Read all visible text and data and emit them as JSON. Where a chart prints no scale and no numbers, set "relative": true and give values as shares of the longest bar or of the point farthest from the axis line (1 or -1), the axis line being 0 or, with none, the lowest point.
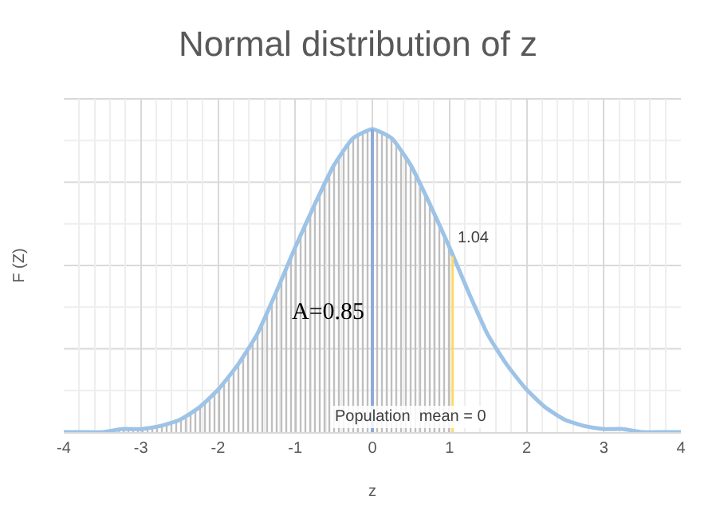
{
  "chart_data": {
    "type": "line",
    "title": "Normal distribution of z",
    "xlabel": "z",
    "ylabel": "F (Z)",
    "relative": true,
    "xlim": [
      -4,
      4
    ],
    "xticks": [
      -4,
      -3,
      -2,
      -1,
      0,
      1,
      2,
      3,
      4
    ],
    "grid": true,
    "series": [
      {
        "type": "area",
        "color": "#bfbfbf",
        "x": [
          -4,
          -3.75,
          -3.5,
          -3.25,
          -3,
          -2.75,
          -2.5,
          -2.25,
          -2,
          -1.75,
          -1.5,
          -1.25,
          -1,
          -0.75,
          -0.5,
          -0.25,
          0,
          0.25,
          0.5,
          0.75,
          1,
          1.04
        ],
        "values": [
          0,
          0,
          0,
          0.01,
          0.01,
          0.02,
          0.04,
          0.08,
          0.14,
          0.22,
          0.32,
          0.46,
          0.61,
          0.75,
          0.88,
          0.97,
          1,
          0.97,
          0.88,
          0.75,
          0.61,
          0.58
        ]
      },
      {
        "type": "line",
        "color": "#9dc3e6",
        "x": [
          -4,
          -3.75,
          -3.5,
          -3.25,
          -3,
          -2.75,
          -2.5,
          -2.25,
          -2,
          -1.75,
          -1.5,
          -1.25,
          -1,
          -0.75,
          -0.5,
          -0.25,
          0,
          0.25,
          0.5,
          0.75,
          1,
          1.25,
          1.5,
          1.75,
          2,
          2.25,
          2.5,
          2.75,
          3,
          3.25,
          3.5,
          3.75,
          4
        ],
        "values": [
          0,
          0,
          0,
          0.01,
          0.01,
          0.02,
          0.04,
          0.08,
          0.14,
          0.22,
          0.32,
          0.46,
          0.61,
          0.75,
          0.88,
          0.97,
          1,
          0.97,
          0.88,
          0.75,
          0.61,
          0.46,
          0.32,
          0.22,
          0.14,
          0.08,
          0.04,
          0.02,
          0.01,
          0.01,
          0,
          0,
          0
        ]
      }
    ],
    "ref_lines": [
      {
        "axis": "x",
        "value": 0,
        "label": "Population  mean = 0",
        "color": "#8faadc"
      },
      {
        "axis": "x",
        "value": 1.04,
        "label": "1.04",
        "color": "#ffd966"
      }
    ],
    "annotations": [
      "A=0.85"
    ]
  }
}
